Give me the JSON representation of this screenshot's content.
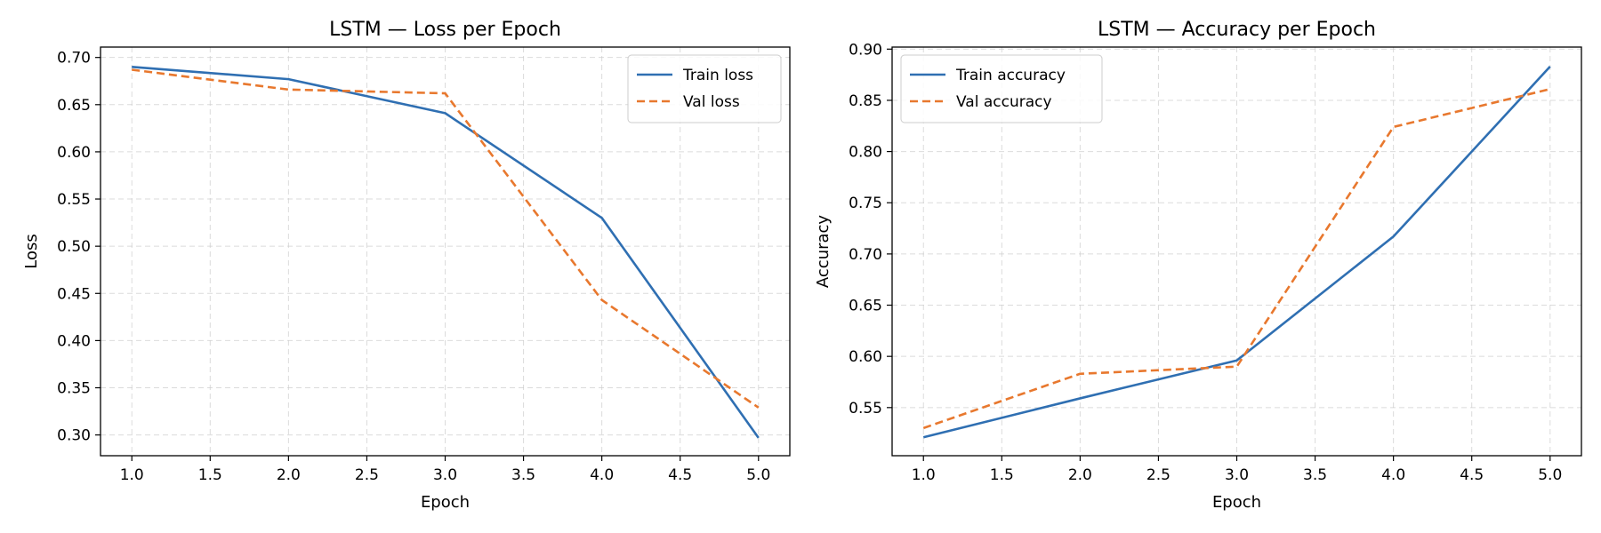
{
  "chart_data": [
    {
      "type": "line",
      "title": "LSTM — Loss per Epoch",
      "xlabel": "Epoch",
      "ylabel": "Loss",
      "xlim": [
        0.8,
        5.2
      ],
      "ylim": [
        0.278,
        0.711
      ],
      "xticks": [
        "1.0",
        "1.5",
        "2.0",
        "2.5",
        "3.0",
        "3.5",
        "4.0",
        "4.5",
        "5.0"
      ],
      "yticks": [
        "0.30",
        "0.35",
        "0.40",
        "0.45",
        "0.50",
        "0.55",
        "0.60",
        "0.65",
        "0.70"
      ],
      "grid": true,
      "legend_position": "top-right",
      "x": [
        1,
        2,
        3,
        4,
        5
      ],
      "series": [
        {
          "name": "Train loss",
          "values": [
            0.69,
            0.677,
            0.641,
            0.53,
            0.297
          ],
          "color": "#2f6fb2",
          "style": "solid"
        },
        {
          "name": "Val loss",
          "values": [
            0.687,
            0.666,
            0.662,
            0.443,
            0.329
          ],
          "color": "#e8782e",
          "style": "dashed"
        }
      ]
    },
    {
      "type": "line",
      "title": "LSTM — Accuracy per Epoch",
      "xlabel": "Epoch",
      "ylabel": "Accuracy",
      "xlim": [
        0.8,
        5.2
      ],
      "ylim": [
        0.503,
        0.902
      ],
      "xticks": [
        "1.0",
        "1.5",
        "2.0",
        "2.5",
        "3.0",
        "3.5",
        "4.0",
        "4.5",
        "5.0"
      ],
      "yticks": [
        "0.55",
        "0.60",
        "0.65",
        "0.70",
        "0.75",
        "0.80",
        "0.85",
        "0.90"
      ],
      "grid": true,
      "legend_position": "top-left",
      "x": [
        1,
        2,
        3,
        4,
        5
      ],
      "series": [
        {
          "name": "Train accuracy",
          "values": [
            0.521,
            0.559,
            0.596,
            0.717,
            0.883
          ],
          "color": "#2f6fb2",
          "style": "solid"
        },
        {
          "name": "Val accuracy",
          "values": [
            0.53,
            0.583,
            0.59,
            0.824,
            0.861
          ],
          "color": "#e8782e",
          "style": "dashed"
        }
      ]
    }
  ]
}
